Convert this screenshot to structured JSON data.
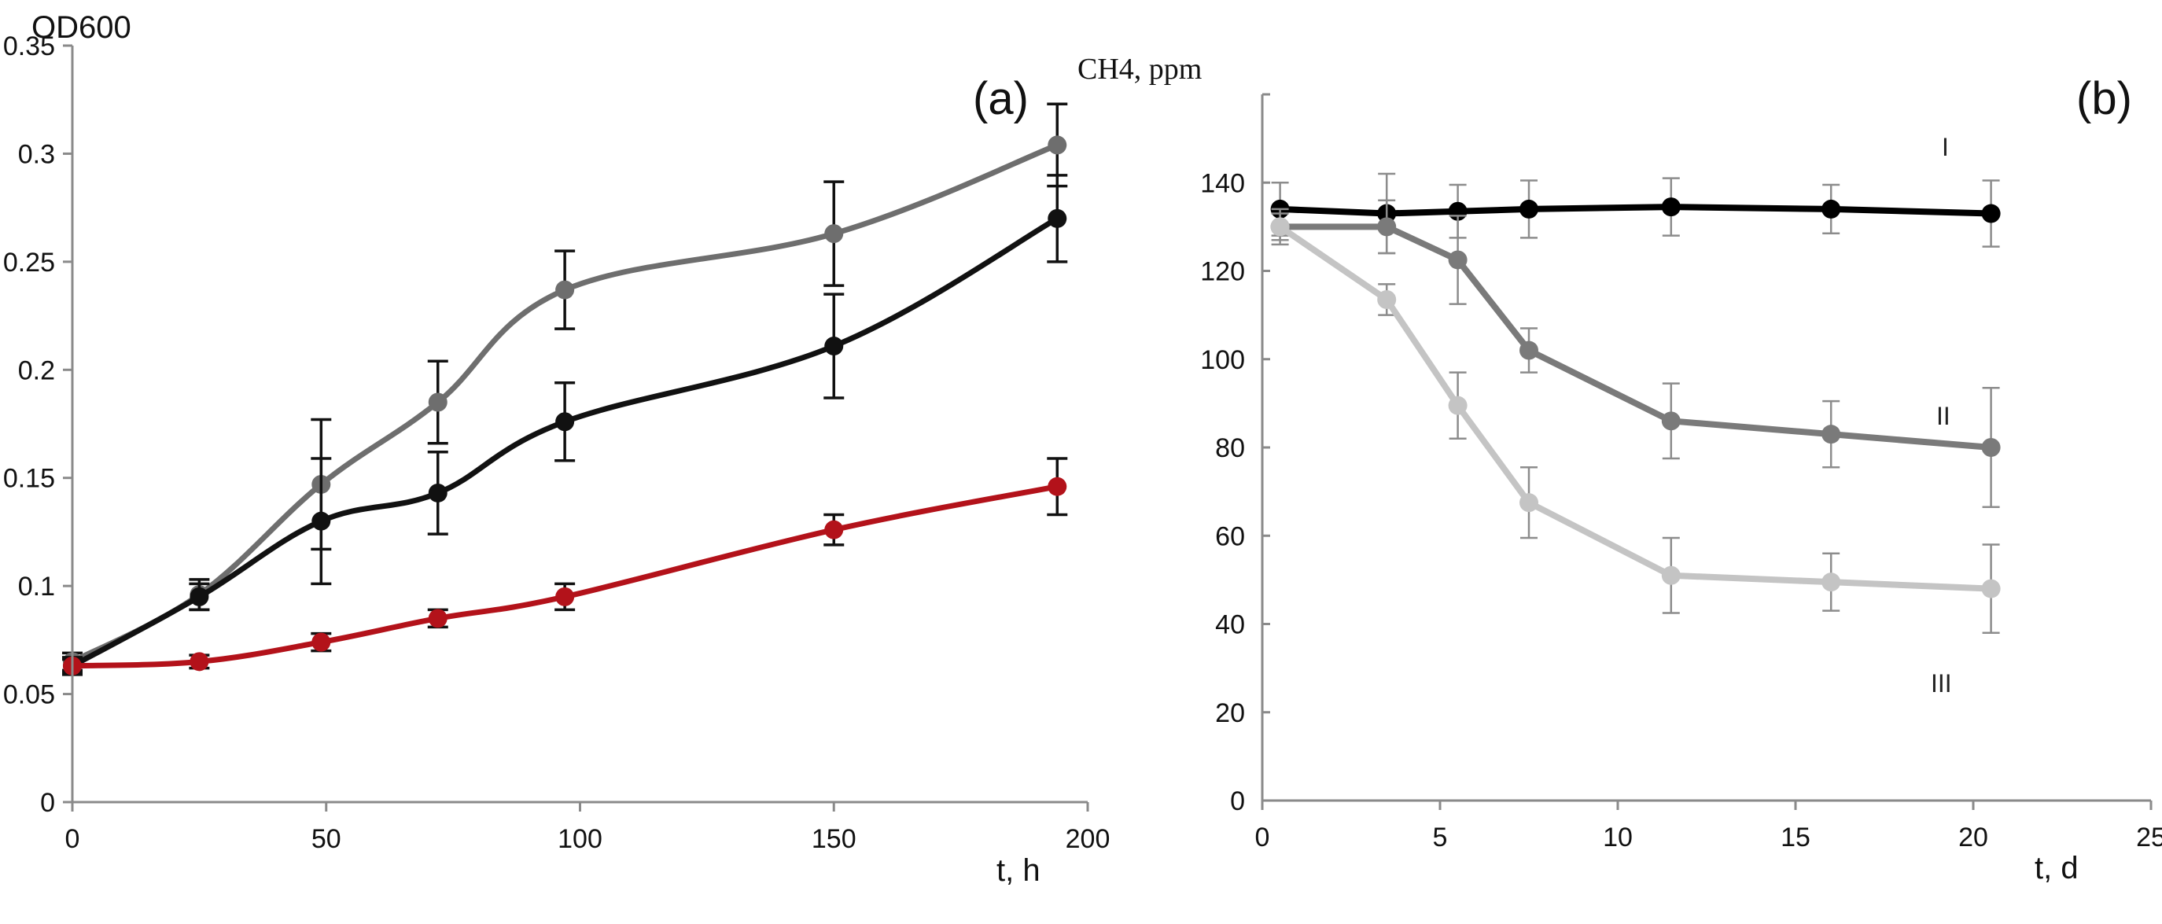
{
  "chart_data": [
    {
      "panel_label": "(a)",
      "type": "line",
      "ylabel": "OD600",
      "xlabel": "t, h",
      "xlim": [
        0,
        200
      ],
      "ylim": [
        0,
        0.35
      ],
      "x_ticks": [
        0,
        50,
        100,
        150,
        200
      ],
      "x_tick_labels": [
        "0",
        "50",
        "100",
        "150",
        "200"
      ],
      "y_ticks": [
        0,
        0.05,
        0.1,
        0.15,
        0.2,
        0.25,
        0.3,
        0.35
      ],
      "y_tick_labels": [
        "0",
        "0.05",
        "0.1",
        "0.15",
        "0.2",
        "0.25",
        "0.3",
        "0.35"
      ],
      "grid": false,
      "series": [
        {
          "name": "grey",
          "color": "#6e6e6e",
          "x": [
            0,
            25,
            49,
            72,
            97,
            150,
            194
          ],
          "y": [
            0.065,
            0.096,
            0.147,
            0.185,
            0.237,
            0.263,
            0.304
          ],
          "err": [
            0.004,
            0.007,
            0.03,
            0.019,
            0.018,
            0.024,
            0.019
          ]
        },
        {
          "name": "black",
          "color": "#111111",
          "x": [
            0,
            25,
            49,
            72,
            97,
            150,
            194
          ],
          "y": [
            0.063,
            0.095,
            0.13,
            0.143,
            0.176,
            0.211,
            0.27
          ],
          "err": [
            0.004,
            0.006,
            0.029,
            0.019,
            0.018,
            0.024,
            0.02
          ]
        },
        {
          "name": "red",
          "color": "#b3121a",
          "x": [
            0,
            25,
            49,
            72,
            97,
            150,
            194
          ],
          "y": [
            0.063,
            0.065,
            0.074,
            0.085,
            0.095,
            0.126,
            0.146
          ],
          "err": [
            0.003,
            0.003,
            0.004,
            0.004,
            0.006,
            0.007,
            0.013
          ]
        }
      ]
    },
    {
      "panel_label": "(b)",
      "type": "line",
      "ylabel": "CH4, ppm",
      "xlabel": "t, d",
      "xlim": [
        0,
        25
      ],
      "ylim": [
        0,
        160
      ],
      "x_ticks": [
        0,
        5,
        10,
        15,
        20,
        25
      ],
      "x_tick_labels": [
        "0",
        "5",
        "10",
        "15",
        "20",
        "25"
      ],
      "y_ticks": [
        0,
        20,
        40,
        60,
        80,
        100,
        120,
        140,
        160
      ],
      "y_tick_labels": [
        "0",
        "20",
        "40",
        "60",
        "80",
        "100",
        "120",
        "140",
        ""
      ],
      "grid": false,
      "series": [
        {
          "name": "I",
          "color": "#000000",
          "x": [
            0.5,
            3.5,
            5.5,
            7.5,
            11.5,
            16,
            20.5
          ],
          "y": [
            134,
            133,
            133.5,
            134,
            134.5,
            134,
            133
          ],
          "err": [
            6,
            9,
            6,
            6.5,
            6.5,
            5.5,
            7.5
          ]
        },
        {
          "name": "II",
          "color": "#7a7a7a",
          "x": [
            0.5,
            3.5,
            5.5,
            7.5,
            11.5,
            16,
            20.5
          ],
          "y": [
            130,
            130,
            122.5,
            102,
            86,
            83,
            80
          ],
          "err": [
            4,
            6,
            10,
            5,
            8.5,
            7.5,
            13.5
          ]
        },
        {
          "name": "III",
          "color": "#c4c4c4",
          "x": [
            0.5,
            3.5,
            5.5,
            7.5,
            11.5,
            16,
            20.5
          ],
          "y": [
            130,
            113.5,
            89.5,
            67.5,
            51,
            49.5,
            48
          ],
          "err": [
            3,
            3.5,
            7.5,
            8,
            8.5,
            6.5,
            10
          ]
        }
      ],
      "annotations": [
        "I",
        "II",
        "III"
      ]
    }
  ]
}
